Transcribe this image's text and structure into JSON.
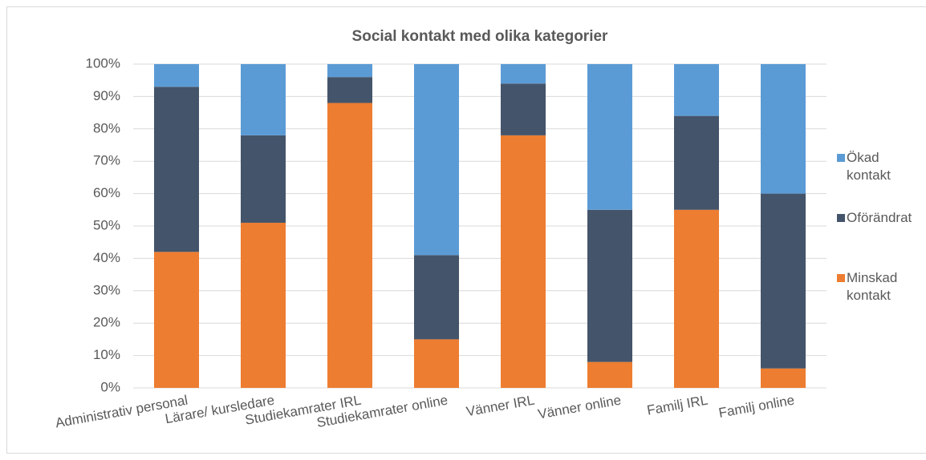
{
  "chart_data": {
    "type": "stacked_bar",
    "title": "Social kontakt med olika kategorier",
    "categories": [
      "Administrativ personal",
      "Lärare/ kursledare",
      "Studiekamrater IRL",
      "Studiekamrater online",
      "Vänner IRL",
      "Vänner online",
      "Familj IRL",
      "Familj online"
    ],
    "series": [
      {
        "name": "Minskad kontakt",
        "color": "#ed7d31",
        "values": [
          42,
          51,
          88,
          15,
          78,
          8,
          55,
          6
        ]
      },
      {
        "name": "Oförändrat",
        "color": "#44546a",
        "values": [
          51,
          27,
          8,
          26,
          16,
          47,
          29,
          54
        ]
      },
      {
        "name": "Ökad kontakt",
        "color": "#5b9bd5",
        "values": [
          7,
          22,
          4,
          59,
          6,
          45,
          16,
          40
        ]
      }
    ],
    "ylim": [
      0,
      100
    ],
    "yticks": [
      {
        "value": 0,
        "label": "0%"
      },
      {
        "value": 10,
        "label": "10%"
      },
      {
        "value": 20,
        "label": "20%"
      },
      {
        "value": 30,
        "label": "30%"
      },
      {
        "value": 40,
        "label": "40%"
      },
      {
        "value": 50,
        "label": "50%"
      },
      {
        "value": 60,
        "label": "60%"
      },
      {
        "value": 70,
        "label": "70%"
      },
      {
        "value": 80,
        "label": "80%"
      },
      {
        "value": 90,
        "label": "90%"
      },
      {
        "value": 100,
        "label": "100%"
      }
    ],
    "grid": true,
    "legend": "right"
  }
}
